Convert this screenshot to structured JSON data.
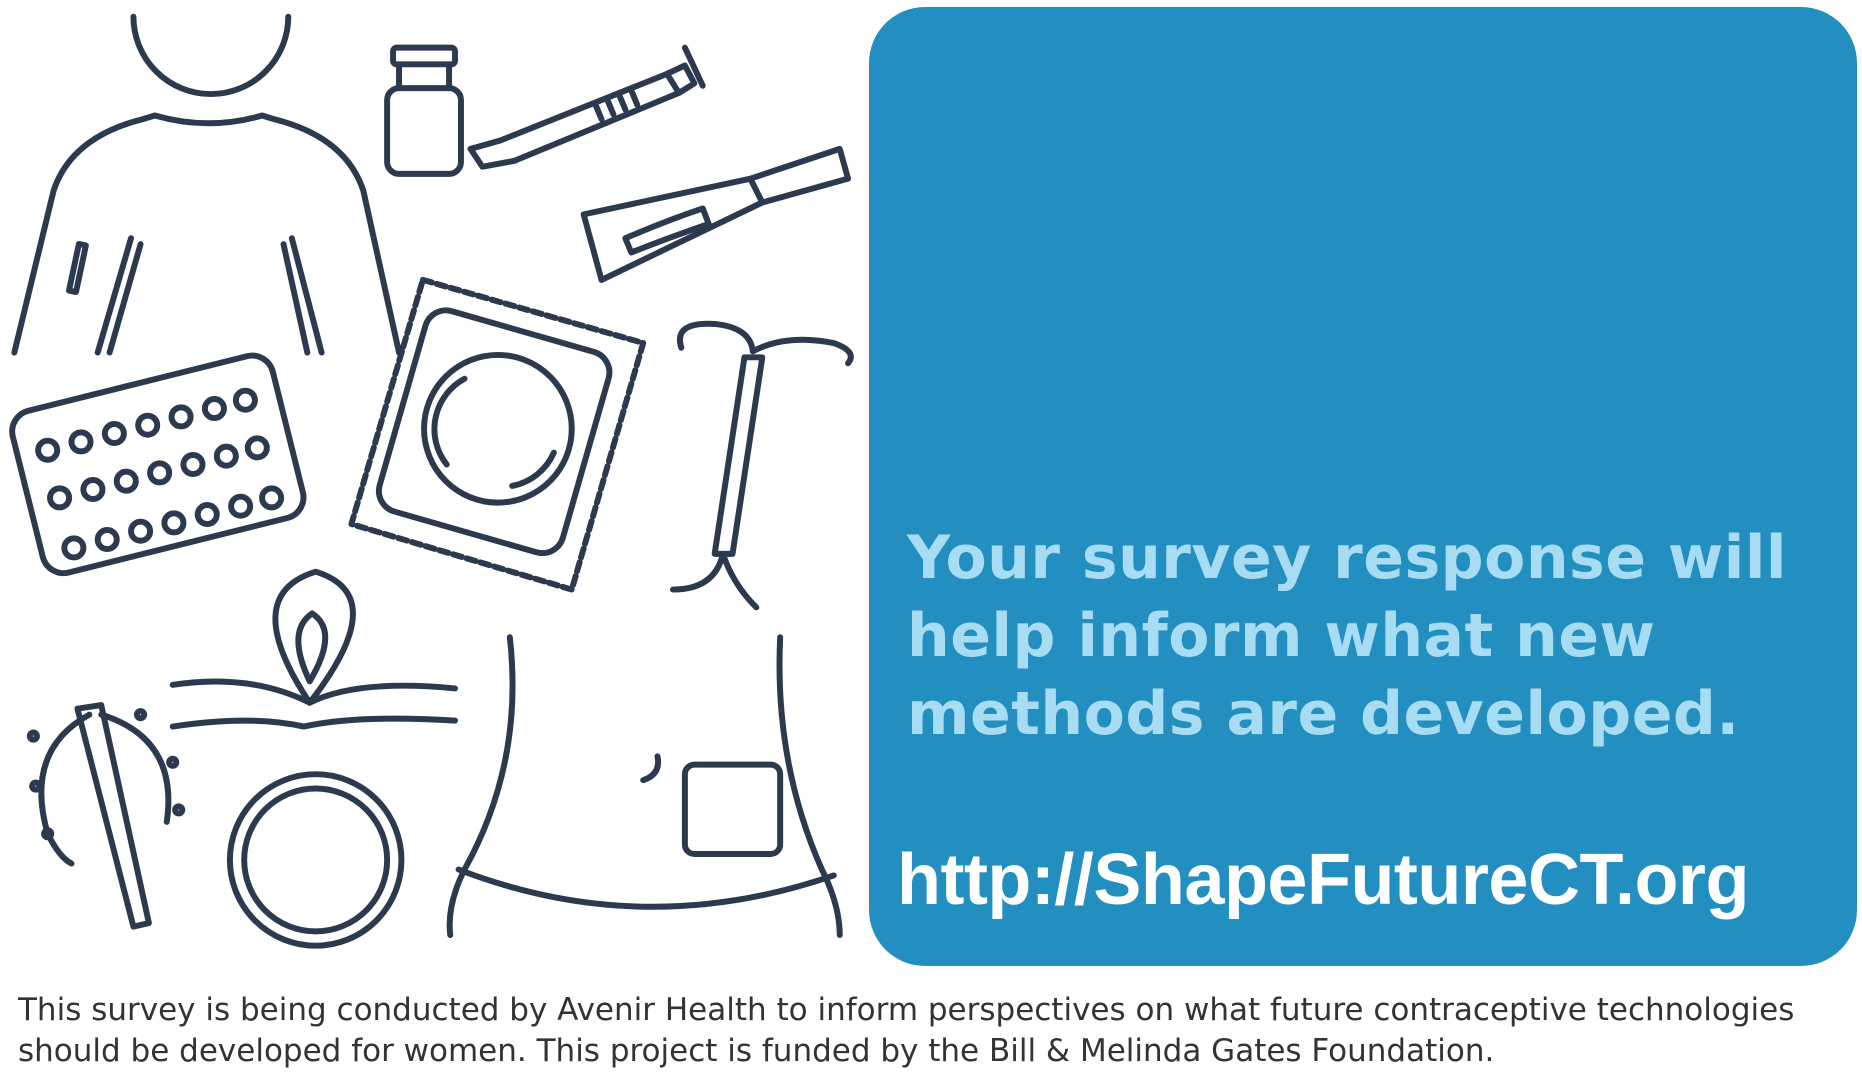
{
  "panel": {
    "headline": "Your survey response will help inform what new methods are developed.",
    "url": "http://ShapeFutureCT.org",
    "background_color": "#238fc1",
    "headline_color": "#a8dcf2"
  },
  "footer": {
    "text": "This survey is being conducted by Avenir Health to inform perspectives on what future contraceptive technologies should be developed for women. This project is funded by the Bill & Melinda Gates Foundation."
  },
  "illustration": {
    "icons": [
      "person-arm-implant-icon",
      "vial-icon",
      "syringe-icon",
      "vaginal-applicator-icon",
      "pill-pack-icon",
      "condom-icon",
      "iud-icon",
      "implant-rod-icon",
      "female-condom-icon",
      "vaginal-ring-icon",
      "torso-patch-icon"
    ]
  }
}
